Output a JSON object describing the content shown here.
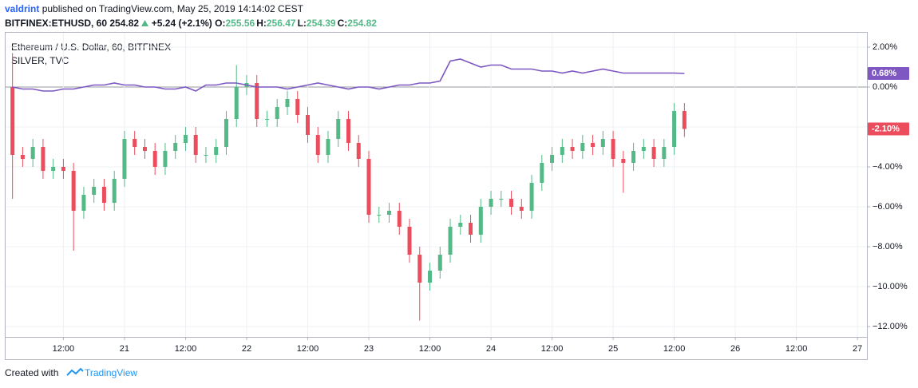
{
  "header": {
    "author": "valdrint",
    "published": "published on TradingView.com, May 25, 2019 14:14:02 CEST",
    "symbol": "BITFINEX:ETHUSD, 60",
    "last": "254.82",
    "change": "+5.24 (+2.1%)",
    "ohlc": [
      {
        "key": "O:",
        "value": "255.56"
      },
      {
        "key": "H:",
        "value": "256.47"
      },
      {
        "key": "L:",
        "value": "254.39"
      },
      {
        "key": "C:",
        "value": "254.82"
      }
    ]
  },
  "footer": {
    "created": "Created with",
    "brand": "TradingView"
  },
  "chart_data": {
    "type": "candlestick",
    "name": "Ethereum / U.S. Dollar, 60, BITFINEX",
    "up_color": "#53b987",
    "down_color": "#eb4d5c",
    "x": [
      2,
      4,
      6,
      8,
      10,
      12,
      14,
      16,
      18,
      20,
      22,
      24,
      26,
      28,
      30,
      32,
      34,
      36,
      38,
      40,
      42,
      44,
      46,
      48,
      50,
      52,
      54,
      56,
      58,
      60,
      62,
      64,
      66,
      68,
      70,
      72,
      74,
      76,
      78,
      80,
      82,
      84,
      86,
      88,
      90,
      92,
      94,
      96,
      98,
      100,
      102,
      104,
      106,
      108,
      110,
      112,
      114,
      116,
      118,
      120,
      122,
      124,
      126,
      128,
      130,
      132,
      134
    ],
    "open": [
      0.0,
      -3.4,
      -3.6,
      -3.0,
      -4.2,
      -4.0,
      -4.2,
      -6.2,
      -5.4,
      -5.0,
      -5.8,
      -4.6,
      -2.6,
      -3.0,
      -3.2,
      -4.0,
      -3.2,
      -2.8,
      -2.4,
      -3.4,
      -3.4,
      -3.0,
      -1.6,
      0.0,
      0.2,
      -1.6,
      -1.6,
      -1.0,
      -0.6,
      -1.4,
      -2.4,
      -3.4,
      -2.6,
      -1.6,
      -2.8,
      -3.6,
      -6.4,
      -6.4,
      -6.2,
      -7.0,
      -8.4,
      -9.8,
      -9.2,
      -8.4,
      -7.0,
      -6.8,
      -7.4,
      -6.0,
      -5.6,
      -5.6,
      -6.0,
      -6.2,
      -4.8,
      -3.8,
      -3.4,
      -3.0,
      -3.2,
      -2.8,
      -3.0,
      -2.6,
      -3.6,
      -3.8,
      -3.2,
      -3.0,
      -3.6,
      -3.0,
      -1.2
    ],
    "high": [
      1.7,
      -3.0,
      -2.6,
      -2.6,
      -3.6,
      -3.6,
      -3.8,
      -5.0,
      -4.6,
      -4.6,
      -4.2,
      -2.2,
      -2.2,
      -2.6,
      -2.8,
      -2.8,
      -2.4,
      -2.0,
      -2.0,
      -3.0,
      -2.6,
      -1.2,
      1.1,
      0.6,
      0.6,
      -1.2,
      -0.6,
      -0.2,
      -0.2,
      -1.0,
      -2.0,
      -2.2,
      -1.2,
      -1.2,
      -2.4,
      -3.2,
      -6.0,
      -5.8,
      -5.8,
      -6.6,
      -8.0,
      -8.8,
      -8.0,
      -6.6,
      -6.4,
      -6.4,
      -5.6,
      -5.2,
      -5.2,
      -5.2,
      -5.6,
      -4.4,
      -3.4,
      -3.0,
      -2.6,
      -2.6,
      -2.4,
      -2.4,
      -2.2,
      -2.2,
      -3.2,
      -2.8,
      -2.6,
      -2.6,
      -2.6,
      -0.8,
      -0.8
    ],
    "low": [
      -5.6,
      -4.0,
      -4.0,
      -4.6,
      -4.6,
      -4.6,
      -8.2,
      -6.6,
      -5.8,
      -6.2,
      -6.2,
      -5.0,
      -3.4,
      -3.6,
      -4.4,
      -4.4,
      -3.6,
      -3.2,
      -3.8,
      -3.8,
      -3.8,
      -3.4,
      -2.0,
      -0.4,
      -2.0,
      -2.0,
      -2.0,
      -1.4,
      -1.8,
      -2.8,
      -3.8,
      -3.8,
      -3.0,
      -3.2,
      -4.0,
      -6.8,
      -6.8,
      -6.8,
      -7.4,
      -8.8,
      -11.7,
      -10.2,
      -9.6,
      -8.8,
      -7.4,
      -7.8,
      -7.8,
      -6.4,
      -6.0,
      -6.4,
      -6.6,
      -6.6,
      -5.2,
      -4.2,
      -3.8,
      -3.6,
      -3.6,
      -3.4,
      -3.4,
      -4.0,
      -5.3,
      -4.2,
      -3.6,
      -4.0,
      -4.0,
      -3.4,
      -2.5
    ],
    "close": [
      -3.4,
      -3.6,
      -3.0,
      -4.2,
      -4.0,
      -4.2,
      -6.2,
      -5.4,
      -5.0,
      -5.8,
      -4.6,
      -2.6,
      -3.0,
      -3.2,
      -4.0,
      -3.2,
      -2.8,
      -2.4,
      -3.4,
      -3.4,
      -3.0,
      -1.6,
      0.0,
      0.2,
      -1.6,
      -1.6,
      -1.0,
      -0.6,
      -1.4,
      -2.4,
      -3.4,
      -2.6,
      -1.6,
      -2.8,
      -3.6,
      -6.4,
      -6.4,
      -6.2,
      -7.0,
      -8.4,
      -9.8,
      -9.2,
      -8.4,
      -7.0,
      -6.8,
      -7.4,
      -6.0,
      -5.6,
      -5.6,
      -6.0,
      -6.2,
      -4.8,
      -3.8,
      -3.4,
      -3.0,
      -3.2,
      -2.8,
      -3.0,
      -2.6,
      -3.6,
      -3.8,
      -3.2,
      -3.0,
      -3.6,
      -3.0,
      -1.2,
      -2.1
    ],
    "last_close_label": "-2.10%",
    "overlay": {
      "type": "line",
      "name": "SILVER, TVC",
      "color": "#7e57c2",
      "values": [
        0.0,
        -0.1,
        -0.1,
        -0.2,
        -0.2,
        -0.1,
        -0.1,
        0.0,
        0.1,
        0.1,
        0.2,
        0.1,
        0.1,
        0.0,
        0.0,
        -0.1,
        -0.1,
        0.0,
        -0.2,
        0.1,
        0.1,
        0.2,
        0.2,
        0.1,
        0.0,
        0.0,
        0.0,
        -0.1,
        0.0,
        0.1,
        0.2,
        0.1,
        0.0,
        -0.1,
        0.0,
        0.0,
        -0.1,
        0.0,
        0.1,
        0.1,
        0.2,
        0.2,
        0.3,
        1.3,
        1.4,
        1.2,
        1.0,
        1.1,
        1.1,
        0.9,
        0.9,
        0.9,
        0.8,
        0.8,
        0.7,
        0.8,
        0.7,
        0.8,
        0.9,
        0.8,
        0.7,
        0.7,
        0.7,
        0.7,
        0.7,
        0.7,
        0.68
      ],
      "last_value_label": "0.68%"
    },
    "xlim": [
      0.8,
      169.7
    ],
    "xticks": [
      {
        "value": 12,
        "label": "12:00"
      },
      {
        "value": 24,
        "label": "21"
      },
      {
        "value": 36,
        "label": "12:00"
      },
      {
        "value": 48,
        "label": "22"
      },
      {
        "value": 60,
        "label": "12:00"
      },
      {
        "value": 72,
        "label": "23"
      },
      {
        "value": 84,
        "label": "12:00"
      },
      {
        "value": 96,
        "label": "24"
      },
      {
        "value": 108,
        "label": "12:00"
      },
      {
        "value": 120,
        "label": "25"
      },
      {
        "value": 132,
        "label": "12:00"
      },
      {
        "value": 144,
        "label": "26"
      },
      {
        "value": 156,
        "label": "12:00"
      },
      {
        "value": 168,
        "label": "27"
      }
    ],
    "ylim": [
      -12.52,
      2.56
    ],
    "yticks": [
      {
        "value": 2,
        "label": "2.00%"
      },
      {
        "value": 0,
        "label": "0.00%"
      },
      {
        "value": -2,
        "label": "−2.00%"
      },
      {
        "value": -4,
        "label": "−4.00%"
      },
      {
        "value": -6,
        "label": "−6.00%"
      },
      {
        "value": -8,
        "label": "−8.00%"
      },
      {
        "value": -10,
        "label": "−10.00%"
      },
      {
        "value": -12,
        "label": "−12.00%"
      }
    ],
    "grid": true
  }
}
